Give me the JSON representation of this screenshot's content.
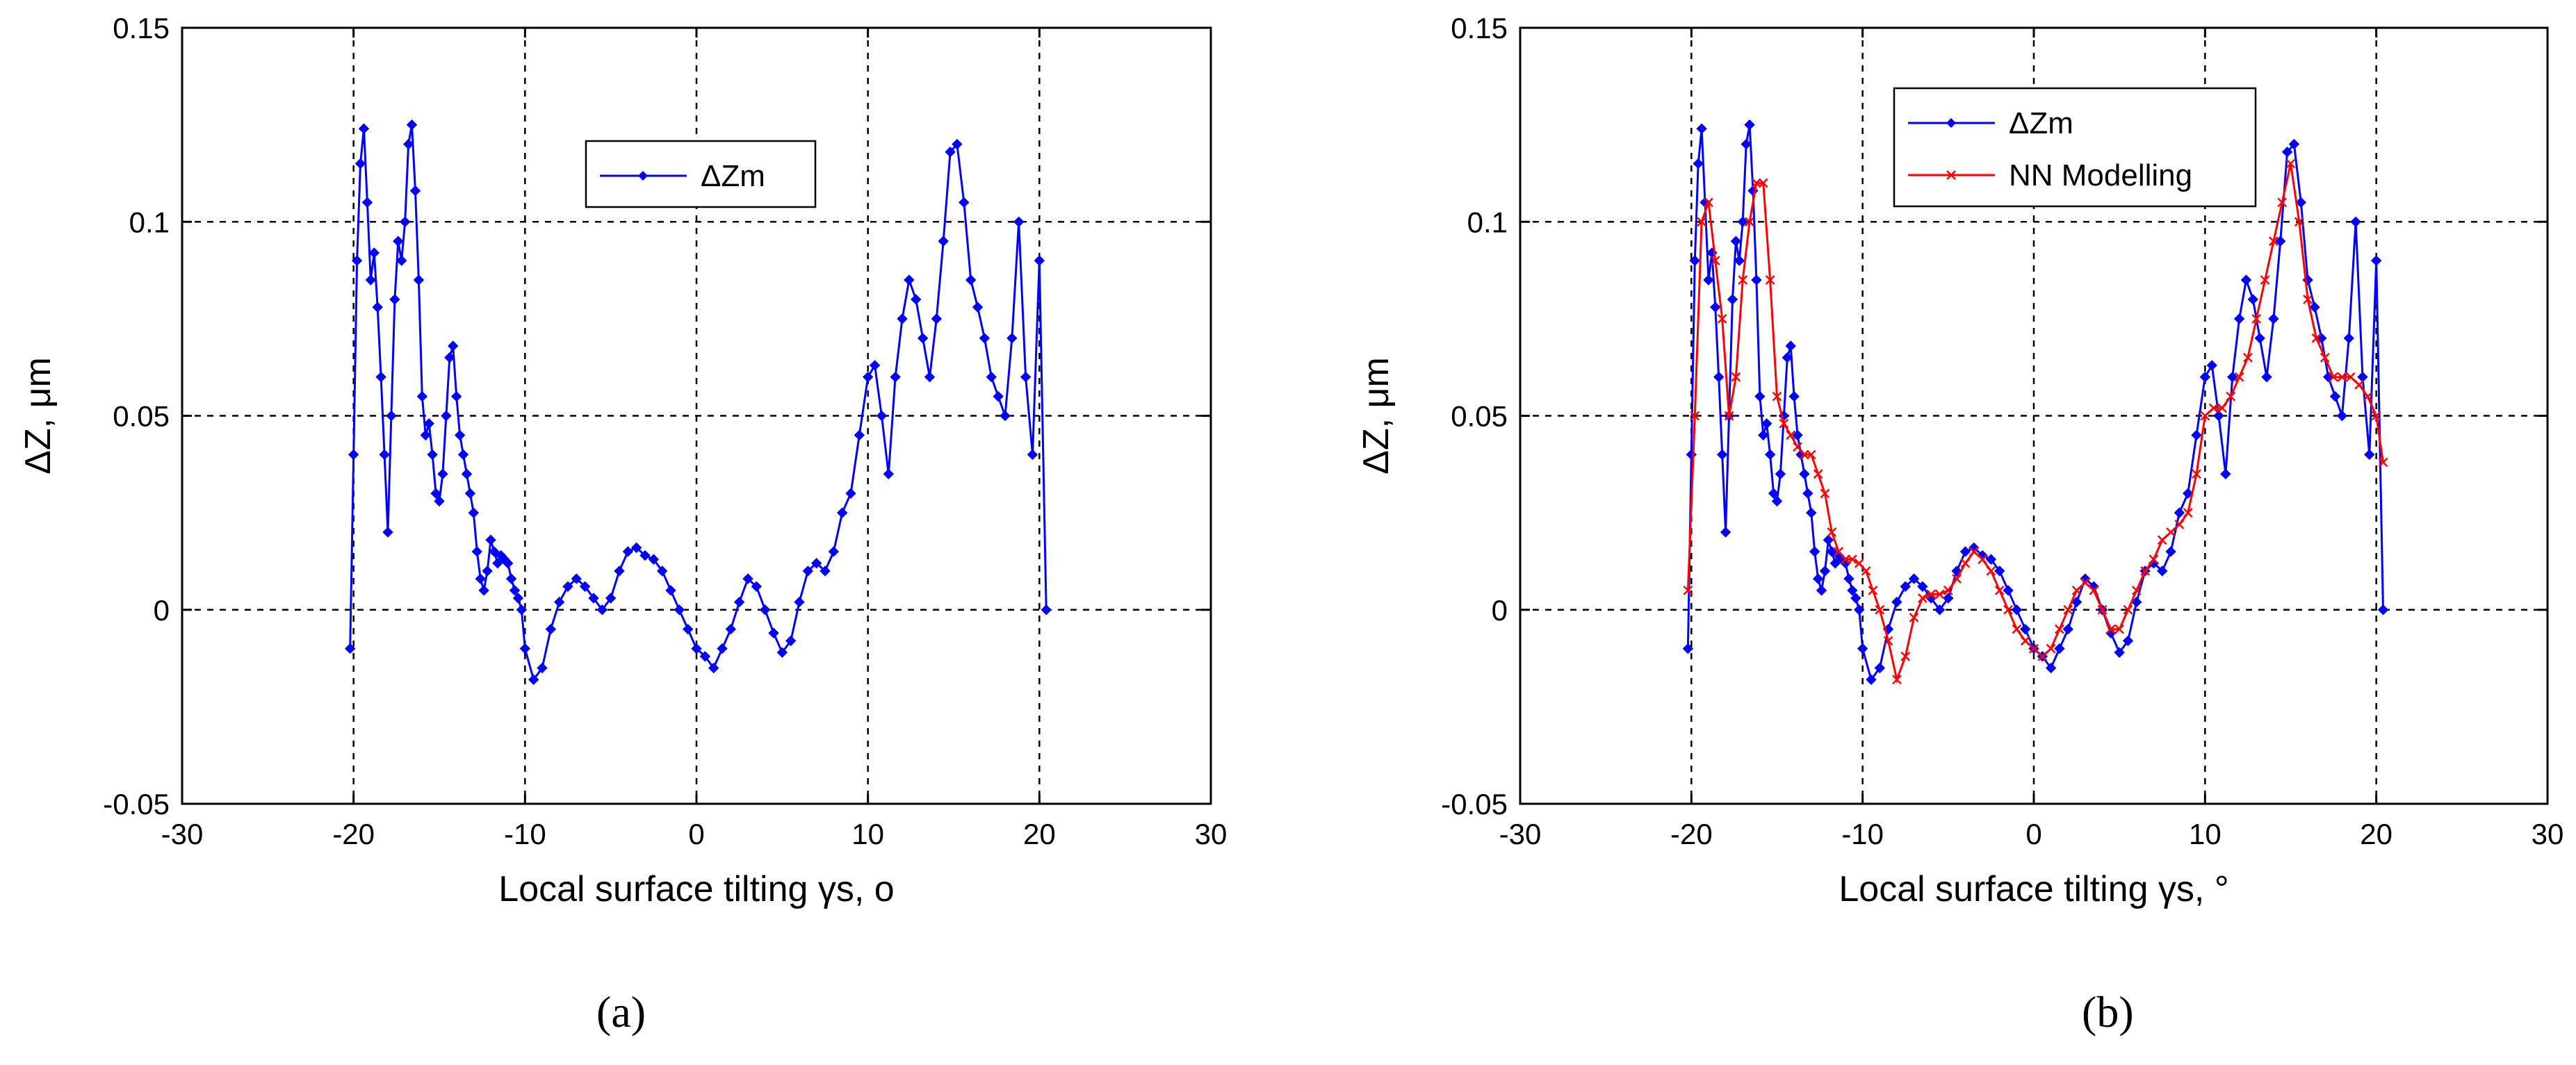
{
  "chart_data": [
    {
      "type": "line",
      "panel_label": "(a)",
      "xlabel": "Local surface tilting γs, o",
      "ylabel": "ΔZ, μm",
      "xlim": [
        -30,
        30
      ],
      "ylim": [
        -0.05,
        0.15
      ],
      "x_ticks": [
        "-30",
        "-20",
        "-10",
        "0",
        "10",
        "20",
        "30"
      ],
      "y_ticks": [
        "-0.05",
        "0",
        "0.05",
        "0.1",
        "0.15"
      ],
      "grid": true,
      "legend": "upper-center",
      "series": [
        {
          "name": "ΔZm",
          "color": "#0000ff",
          "marker": "diamond",
          "x": [
            -20.2,
            -20.0,
            -19.8,
            -19.6,
            -19.4,
            -19.2,
            -19.0,
            -18.8,
            -18.6,
            -18.4,
            -18.2,
            -18.0,
            -17.8,
            -17.6,
            -17.4,
            -17.2,
            -17.0,
            -16.8,
            -16.6,
            -16.4,
            -16.2,
            -16.0,
            -15.8,
            -15.6,
            -15.4,
            -15.2,
            -15.0,
            -14.8,
            -14.6,
            -14.4,
            -14.2,
            -14.0,
            -13.8,
            -13.6,
            -13.4,
            -13.2,
            -13.0,
            -12.8,
            -12.6,
            -12.4,
            -12.2,
            -12.0,
            -11.8,
            -11.6,
            -11.4,
            -11.2,
            -11.0,
            -10.8,
            -10.6,
            -10.4,
            -10.2,
            -10.0,
            -9.5,
            -9.0,
            -8.5,
            -8.0,
            -7.5,
            -7.0,
            -6.5,
            -6.0,
            -5.5,
            -5.0,
            -4.5,
            -4.0,
            -3.5,
            -3.0,
            -2.5,
            -2.0,
            -1.5,
            -1.0,
            -0.5,
            0.0,
            0.5,
            1.0,
            1.5,
            2.0,
            2.5,
            3.0,
            3.5,
            4.0,
            4.5,
            5.0,
            5.5,
            6.0,
            6.5,
            7.0,
            7.5,
            8.0,
            8.5,
            9.0,
            9.5,
            10.0,
            10.4,
            10.8,
            11.2,
            11.6,
            12.0,
            12.4,
            12.8,
            13.2,
            13.6,
            14.0,
            14.4,
            14.8,
            15.2,
            15.6,
            16.0,
            16.4,
            16.8,
            17.2,
            17.6,
            18.0,
            18.4,
            18.8,
            19.2,
            19.6,
            20.0,
            20.4
          ],
          "y": [
            -0.01,
            0.04,
            0.09,
            0.115,
            0.124,
            0.105,
            0.085,
            0.092,
            0.078,
            0.06,
            0.04,
            0.02,
            0.05,
            0.08,
            0.095,
            0.09,
            0.1,
            0.12,
            0.125,
            0.108,
            0.085,
            0.055,
            0.045,
            0.048,
            0.04,
            0.03,
            0.028,
            0.035,
            0.05,
            0.065,
            0.068,
            0.055,
            0.045,
            0.04,
            0.035,
            0.03,
            0.025,
            0.015,
            0.008,
            0.005,
            0.01,
            0.018,
            0.015,
            0.012,
            0.014,
            0.013,
            0.012,
            0.008,
            0.005,
            0.003,
            0.0,
            -0.01,
            -0.018,
            -0.015,
            -0.005,
            0.002,
            0.006,
            0.008,
            0.006,
            0.003,
            0.0,
            0.003,
            0.01,
            0.015,
            0.016,
            0.014,
            0.013,
            0.01,
            0.005,
            0.0,
            -0.005,
            -0.01,
            -0.012,
            -0.015,
            -0.01,
            -0.005,
            0.002,
            0.008,
            0.006,
            0.0,
            -0.006,
            -0.011,
            -0.008,
            0.002,
            0.01,
            0.012,
            0.01,
            0.015,
            0.025,
            0.03,
            0.045,
            0.06,
            0.063,
            0.05,
            0.035,
            0.06,
            0.075,
            0.085,
            0.08,
            0.07,
            0.06,
            0.075,
            0.095,
            0.118,
            0.12,
            0.105,
            0.085,
            0.078,
            0.07,
            0.06,
            0.055,
            0.05,
            0.07,
            0.1,
            0.06,
            0.04,
            0.09,
            0.0
          ]
        }
      ]
    },
    {
      "type": "line",
      "panel_label": "(b)",
      "xlabel": "Local surface tilting γs, °",
      "ylabel": "ΔZ, μm",
      "xlim": [
        -30,
        30
      ],
      "ylim": [
        -0.05,
        0.15
      ],
      "x_ticks": [
        "-30",
        "-20",
        "-10",
        "0",
        "10",
        "20",
        "30"
      ],
      "y_ticks": [
        "-0.05",
        "0",
        "0.05",
        "0.1",
        "0.15"
      ],
      "grid": true,
      "legend": "top-center",
      "series": [
        {
          "name": "ΔZm",
          "color": "#0000ff",
          "marker": "diamond",
          "x": [
            -20.2,
            -20.0,
            -19.8,
            -19.6,
            -19.4,
            -19.2,
            -19.0,
            -18.8,
            -18.6,
            -18.4,
            -18.2,
            -18.0,
            -17.8,
            -17.6,
            -17.4,
            -17.2,
            -17.0,
            -16.8,
            -16.6,
            -16.4,
            -16.2,
            -16.0,
            -15.8,
            -15.6,
            -15.4,
            -15.2,
            -15.0,
            -14.8,
            -14.6,
            -14.4,
            -14.2,
            -14.0,
            -13.8,
            -13.6,
            -13.4,
            -13.2,
            -13.0,
            -12.8,
            -12.6,
            -12.4,
            -12.2,
            -12.0,
            -11.8,
            -11.6,
            -11.4,
            -11.2,
            -11.0,
            -10.8,
            -10.6,
            -10.4,
            -10.2,
            -10.0,
            -9.5,
            -9.0,
            -8.5,
            -8.0,
            -7.5,
            -7.0,
            -6.5,
            -6.0,
            -5.5,
            -5.0,
            -4.5,
            -4.0,
            -3.5,
            -3.0,
            -2.5,
            -2.0,
            -1.5,
            -1.0,
            -0.5,
            0.0,
            0.5,
            1.0,
            1.5,
            2.0,
            2.5,
            3.0,
            3.5,
            4.0,
            4.5,
            5.0,
            5.5,
            6.0,
            6.5,
            7.0,
            7.5,
            8.0,
            8.5,
            9.0,
            9.5,
            10.0,
            10.4,
            10.8,
            11.2,
            11.6,
            12.0,
            12.4,
            12.8,
            13.2,
            13.6,
            14.0,
            14.4,
            14.8,
            15.2,
            15.6,
            16.0,
            16.4,
            16.8,
            17.2,
            17.6,
            18.0,
            18.4,
            18.8,
            19.2,
            19.6,
            20.0,
            20.4
          ],
          "y": [
            -0.01,
            0.04,
            0.09,
            0.115,
            0.124,
            0.105,
            0.085,
            0.092,
            0.078,
            0.06,
            0.04,
            0.02,
            0.05,
            0.08,
            0.095,
            0.09,
            0.1,
            0.12,
            0.125,
            0.108,
            0.085,
            0.055,
            0.045,
            0.048,
            0.04,
            0.03,
            0.028,
            0.035,
            0.05,
            0.065,
            0.068,
            0.055,
            0.045,
            0.04,
            0.035,
            0.03,
            0.025,
            0.015,
            0.008,
            0.005,
            0.01,
            0.018,
            0.015,
            0.012,
            0.014,
            0.013,
            0.012,
            0.008,
            0.005,
            0.003,
            0.0,
            -0.01,
            -0.018,
            -0.015,
            -0.005,
            0.002,
            0.006,
            0.008,
            0.006,
            0.003,
            0.0,
            0.003,
            0.01,
            0.015,
            0.016,
            0.014,
            0.013,
            0.01,
            0.005,
            0.0,
            -0.005,
            -0.01,
            -0.012,
            -0.015,
            -0.01,
            -0.005,
            0.002,
            0.008,
            0.006,
            0.0,
            -0.006,
            -0.011,
            -0.008,
            0.002,
            0.01,
            0.012,
            0.01,
            0.015,
            0.025,
            0.03,
            0.045,
            0.06,
            0.063,
            0.05,
            0.035,
            0.06,
            0.075,
            0.085,
            0.08,
            0.07,
            0.06,
            0.075,
            0.095,
            0.118,
            0.12,
            0.105,
            0.085,
            0.078,
            0.07,
            0.06,
            0.055,
            0.05,
            0.07,
            0.1,
            0.06,
            0.04,
            0.09,
            0.0
          ]
        },
        {
          "name": "NN Modelling",
          "color": "#ff0000",
          "marker": "x",
          "x": [
            -20.2,
            -19.8,
            -19.4,
            -19.0,
            -18.6,
            -18.2,
            -17.8,
            -17.4,
            -17.0,
            -16.6,
            -16.2,
            -15.8,
            -15.4,
            -15.0,
            -14.6,
            -14.2,
            -13.8,
            -13.4,
            -13.0,
            -12.6,
            -12.2,
            -11.8,
            -11.4,
            -11.0,
            -10.6,
            -10.2,
            -9.8,
            -9.4,
            -9.0,
            -8.5,
            -8.0,
            -7.5,
            -7.0,
            -6.5,
            -6.0,
            -5.5,
            -5.0,
            -4.5,
            -4.0,
            -3.5,
            -3.0,
            -2.5,
            -2.0,
            -1.5,
            -1.0,
            -0.5,
            0.0,
            0.5,
            1.0,
            1.5,
            2.0,
            2.5,
            3.0,
            3.5,
            4.0,
            4.5,
            5.0,
            5.5,
            6.0,
            6.5,
            7.0,
            7.5,
            8.0,
            8.5,
            9.0,
            9.5,
            10.0,
            10.5,
            11.0,
            11.5,
            12.0,
            12.5,
            13.0,
            13.5,
            14.0,
            14.5,
            15.0,
            15.5,
            16.0,
            16.5,
            17.0,
            17.5,
            18.0,
            18.5,
            19.0,
            19.5,
            20.0,
            20.4
          ],
          "y": [
            0.005,
            0.05,
            0.1,
            0.105,
            0.09,
            0.075,
            0.05,
            0.06,
            0.085,
            0.1,
            0.11,
            0.11,
            0.085,
            0.055,
            0.048,
            0.045,
            0.042,
            0.04,
            0.04,
            0.035,
            0.03,
            0.02,
            0.015,
            0.013,
            0.013,
            0.012,
            0.01,
            0.005,
            0.0,
            -0.008,
            -0.018,
            -0.012,
            -0.002,
            0.003,
            0.004,
            0.004,
            0.005,
            0.008,
            0.012,
            0.015,
            0.013,
            0.01,
            0.005,
            0.0,
            -0.005,
            -0.008,
            -0.01,
            -0.012,
            -0.01,
            -0.005,
            0.0,
            0.005,
            0.007,
            0.005,
            0.0,
            -0.005,
            -0.005,
            0.0,
            0.005,
            0.01,
            0.013,
            0.018,
            0.02,
            0.022,
            0.025,
            0.035,
            0.05,
            0.052,
            0.052,
            0.055,
            0.06,
            0.065,
            0.075,
            0.085,
            0.095,
            0.105,
            0.115,
            0.1,
            0.08,
            0.07,
            0.065,
            0.06,
            0.06,
            0.06,
            0.058,
            0.055,
            0.05,
            0.038
          ]
        }
      ]
    }
  ]
}
